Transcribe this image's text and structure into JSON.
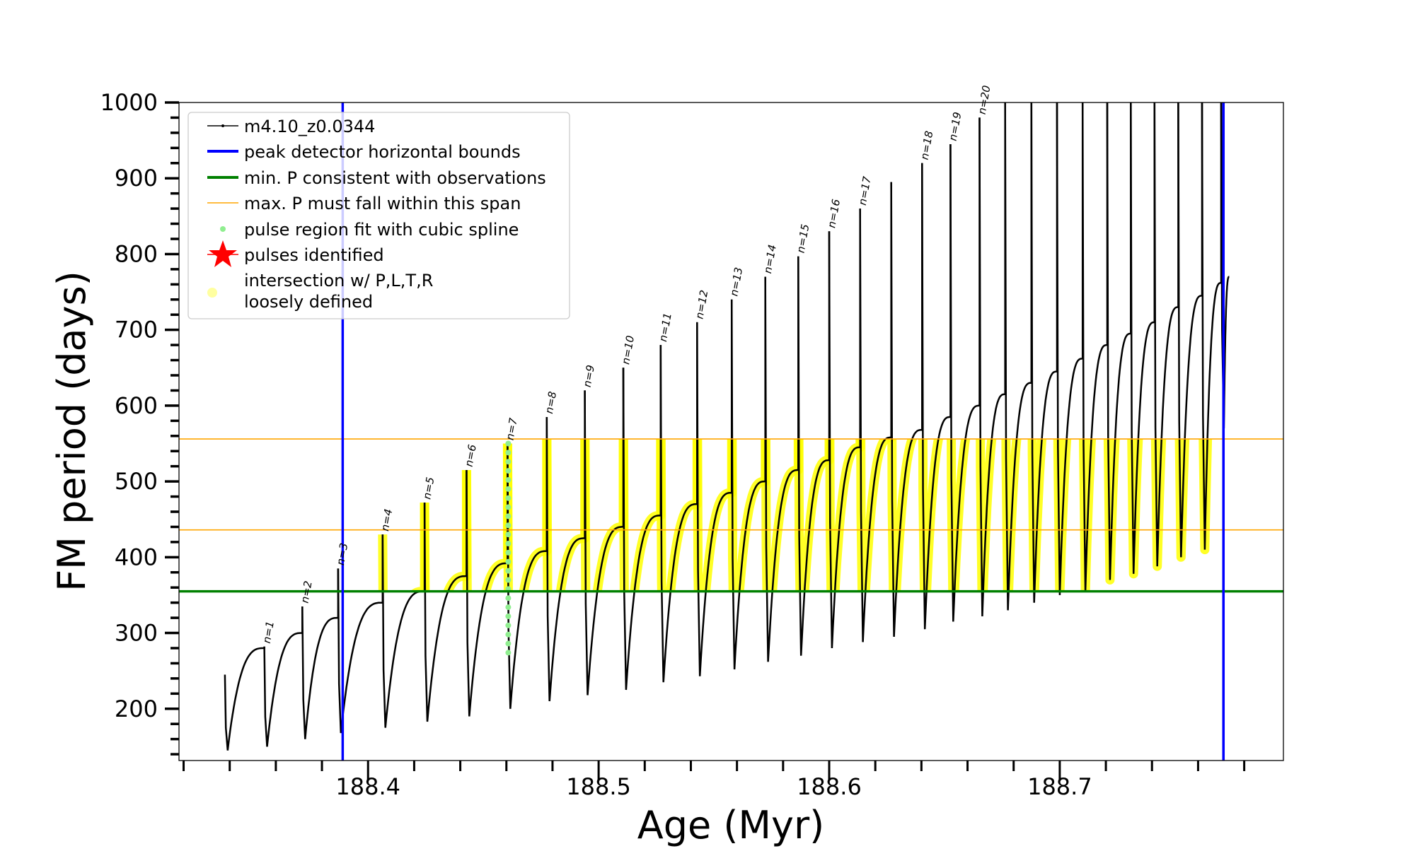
{
  "chart_data": {
    "type": "line",
    "title": "",
    "xlabel": "Age (Myr)",
    "ylabel": "FM period (days)",
    "xlim": [
      188.318,
      188.797
    ],
    "ylim": [
      131.7,
      1000
    ],
    "xticks": [
      188.4,
      188.5,
      188.6,
      188.7
    ],
    "xtick_labels": [
      "188.4",
      "188.5",
      "188.6",
      "188.7"
    ],
    "yticks": [
      200,
      300,
      400,
      500,
      600,
      700,
      800,
      900,
      1000
    ],
    "ytick_labels": [
      "200",
      "300",
      "400",
      "500",
      "600",
      "700",
      "800",
      "900",
      "1000"
    ],
    "legend": {
      "placement": "upper-left",
      "entries": [
        {
          "label": "m4.10_z0.0344",
          "style": "line-marker",
          "color": "#000000"
        },
        {
          "label": "peak detector horizontal bounds",
          "style": "line",
          "color": "#0000ff"
        },
        {
          "label": "min. P consistent with observations",
          "style": "line",
          "color": "#008000"
        },
        {
          "label": "max. P must fall within this span",
          "style": "line",
          "color": "#ffa500"
        },
        {
          "label": "pulse region fit with cubic spline",
          "style": "dot",
          "color": "#90ee90"
        },
        {
          "label": "pulses identified",
          "style": "star",
          "color": "#ff0000"
        },
        {
          "label": "intersection w/ P,L,T,R",
          "label2": "loosely defined",
          "style": "dot",
          "color": "#ffffa0"
        }
      ]
    },
    "series_name": "m4.10_z0.0344",
    "start": {
      "age": 188.3379,
      "spike_max": 245,
      "dip_min": 145
    },
    "pulses": {
      "ages": [
        188.355,
        188.3715,
        188.387,
        188.4063,
        188.4245,
        188.4427,
        188.4605,
        188.4775,
        188.494,
        188.5107,
        188.5269,
        188.5427,
        188.5577,
        188.5723,
        188.5866,
        188.6,
        188.6134,
        188.6269,
        188.6403,
        188.6526,
        188.6652,
        188.6763,
        188.6877,
        188.6988,
        188.7099,
        188.7206,
        188.7308,
        188.7411,
        188.7514,
        188.7617,
        188.77
      ],
      "envelope_before": [
        280,
        300,
        320,
        340,
        355,
        375,
        392,
        408,
        425,
        440,
        455,
        470,
        485,
        500,
        515,
        528,
        545,
        558,
        568,
        585,
        600,
        615,
        630,
        645,
        662,
        680,
        695,
        710,
        730,
        745,
        762
      ],
      "spike_max": [
        282,
        335,
        385,
        430,
        472,
        515,
        550,
        585,
        620,
        650,
        680,
        710,
        740,
        770,
        797,
        830,
        860,
        895,
        920,
        945,
        980,
        1000,
        1000,
        1000,
        1000,
        1000,
        1000,
        1000,
        1000,
        1000,
        1000
      ],
      "dip_min": [
        150,
        160,
        168,
        175,
        183,
        190,
        200,
        210,
        218,
        225,
        235,
        243,
        252,
        262,
        270,
        280,
        288,
        295,
        305,
        315,
        322,
        330,
        340,
        350,
        355,
        370,
        378,
        388,
        400,
        410,
        570
      ],
      "labels": [
        "n=1",
        "n=2",
        "n=3",
        "n=4",
        "n=5",
        "n=6",
        "n=7",
        "n=8",
        "n=9",
        "n=10",
        "n=11",
        "n=12",
        "n=13",
        "n=14",
        "n=15",
        "n=16",
        "n=17",
        "",
        "n=18",
        "n=19",
        "n=20"
      ]
    },
    "end": {
      "age": 188.7735,
      "value": 770
    },
    "hlines": {
      "min_P": 355,
      "max_P_span": [
        436,
        556
      ]
    },
    "vlines": {
      "peak_detector_bounds": [
        188.389,
        188.771
      ]
    },
    "spline_fit_pulse": "n=7"
  }
}
